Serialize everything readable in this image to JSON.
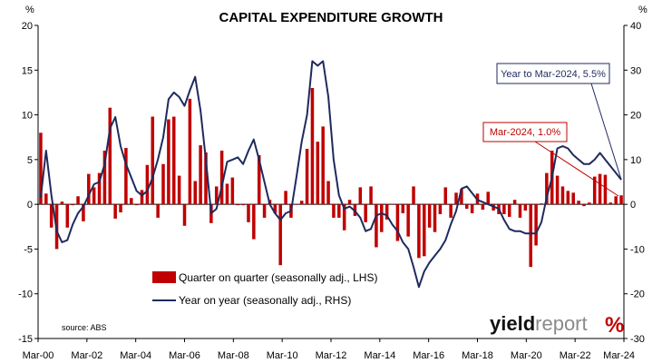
{
  "chart_data": {
    "type": "bar+line",
    "title": "CAPITAL EXPENDITURE GROWTH",
    "y_left": {
      "unit_label": "%",
      "ylim": [
        -15,
        20
      ],
      "ticks": [
        -15,
        -10,
        -5,
        0,
        5,
        10,
        15,
        20
      ]
    },
    "y_right": {
      "unit_label": "%",
      "ylim": [
        -30,
        40
      ],
      "ticks": [
        -30,
        -20,
        -10,
        0,
        10,
        20,
        30,
        40
      ]
    },
    "x": {
      "ticks": [
        "Mar-00",
        "Mar-02",
        "Mar-04",
        "Mar-06",
        "Mar-08",
        "Mar-10",
        "Mar-12",
        "Mar-14",
        "Mar-16",
        "Mar-18",
        "Mar-20",
        "Mar-22",
        "Mar-24"
      ]
    },
    "grid": "none",
    "series": [
      {
        "name": "Quarter on quarter (seasonally adj., LHS)",
        "type": "bar",
        "axis": "left",
        "color": "#c00000",
        "values": [
          8.0,
          1.2,
          -2.6,
          -5.0,
          0.3,
          -2.6,
          -0.1,
          0.9,
          -1.9,
          3.4,
          1.9,
          3.5,
          6.0,
          10.8,
          -1.6,
          -0.9,
          6.3,
          0.7,
          -0.1,
          1.6,
          4.4,
          9.8,
          -1.5,
          4.5,
          9.5,
          9.8,
          3.2,
          -2.4,
          11.8,
          2.6,
          6.6,
          5.8,
          -2.1,
          2.0,
          6.0,
          2.3,
          3.0,
          -0.1,
          -0.1,
          -2.0,
          -3.9,
          5.5,
          -1.5,
          0.5,
          -1.0,
          -6.8,
          1.5,
          -1.5,
          0.0,
          0.4,
          6.2,
          13.0,
          7.0,
          8.7,
          2.6,
          -1.5,
          -1.5,
          -2.9,
          0.5,
          -1.3,
          1.9,
          -2.0,
          2.0,
          -4.8,
          -3.1,
          -1.7,
          0.0,
          -4.1,
          -1.0,
          -3.6,
          2.0,
          -6.0,
          -5.8,
          -2.6,
          -3.1,
          -1.1,
          1.9,
          -1.5,
          1.3,
          1.7,
          -0.5,
          -1.0,
          1.2,
          -0.6,
          1.4,
          -0.7,
          -1.1,
          -1.1,
          -1.4,
          0.5,
          -1.5,
          -0.7,
          -7.0,
          -4.6,
          0.1,
          3.5,
          6.0,
          3.2,
          2.0,
          1.5,
          1.3,
          0.4,
          -0.2,
          0.2,
          3.1,
          3.4,
          3.3,
          0.2,
          0.9,
          1.0
        ]
      },
      {
        "name": "Year on year (seasonally adj., RHS)",
        "type": "line",
        "axis": "right",
        "color": "#1f2a5e",
        "values": [
          1.5,
          12.0,
          2.0,
          -6.0,
          -8.5,
          -8.0,
          -4.5,
          -2.0,
          -0.5,
          2.0,
          4.5,
          5.0,
          9.0,
          17.0,
          19.5,
          13.0,
          9.0,
          6.0,
          3.0,
          2.0,
          3.0,
          6.0,
          10.0,
          15.0,
          23.5,
          25.0,
          24.0,
          22.0,
          25.5,
          28.5,
          21.0,
          10.0,
          -2.0,
          -1.0,
          4.0,
          9.5,
          10.0,
          10.5,
          9.0,
          12.0,
          14.5,
          10.0,
          5.0,
          0.0,
          -2.0,
          -3.5,
          -2.0,
          -1.5,
          6.0,
          14.0,
          20.0,
          32.0,
          31.0,
          32.0,
          24.0,
          10.0,
          2.0,
          -1.0,
          -0.5,
          -1.5,
          -3.0,
          -6.0,
          -5.5,
          -2.5,
          -2.0,
          -2.5,
          -4.5,
          -6.0,
          -8.5,
          -10.0,
          -14.0,
          -18.5,
          -15.0,
          -13.0,
          -11.5,
          -10.0,
          -8.0,
          -4.5,
          -1.5,
          3.5,
          4.0,
          2.5,
          1.0,
          0.5,
          0.0,
          -0.5,
          -1.0,
          -3.5,
          -5.5,
          -6.0,
          -6.0,
          -6.5,
          -6.5,
          -6.5,
          -4.0,
          1.5,
          6.0,
          12.5,
          13.0,
          12.5,
          11.0,
          10.0,
          9.0,
          9.0,
          10.0,
          11.5,
          10.0,
          8.5,
          7.0,
          5.5
        ]
      }
    ],
    "legend": {
      "placement": "bottom-center",
      "items": [
        "Quarter on quarter (seasonally adj., LHS)",
        "Year on year (seasonally adj., RHS)"
      ]
    },
    "annotations": [
      {
        "text": "Year to Mar-2024, 5.5%",
        "color": "#1f2a5e",
        "points_to": "line-end"
      },
      {
        "text": "Mar-2024, 1.0%",
        "color": "#c00000",
        "points_to": "bar-end"
      }
    ],
    "source": "source: ABS"
  },
  "branding": {
    "logo_text": "yieldreport %"
  }
}
